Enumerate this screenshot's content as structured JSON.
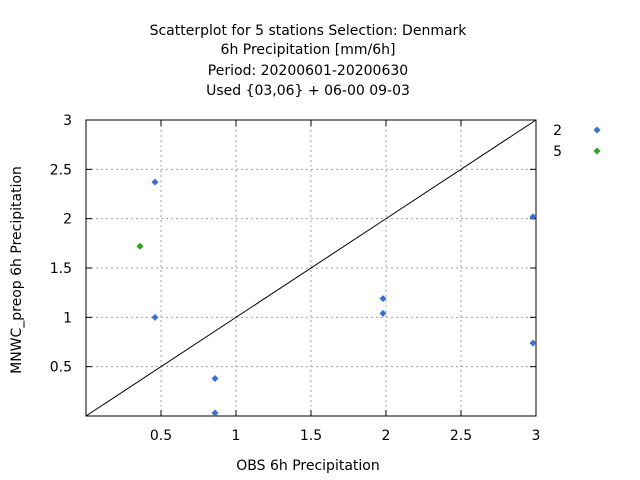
{
  "chart_data": {
    "type": "scatter",
    "title_lines": [
      "Scatterplot for    5 stations Selection: Denmark",
      "6h Precipitation [mm/6h]",
      "Period: 20200601-20200630",
      "Used {03,06} + 06-00 09-03"
    ],
    "xlabel": "OBS 6h Precipitation",
    "ylabel": "MNWC_preop 6h Precipitation",
    "xlim": [
      0.0,
      3.0
    ],
    "ylim": [
      0.0,
      3.0
    ],
    "x_ticks": [
      "0.5",
      "1",
      "1.5",
      "2",
      "2.5",
      "3"
    ],
    "y_ticks": [
      "0.5",
      "1",
      "1.5",
      "2",
      "2.5",
      "3"
    ],
    "grid": true,
    "legend_position": "right",
    "diagonal": true,
    "series": [
      {
        "name": "2",
        "color": "#3b6fd8",
        "points": [
          {
            "x": 0.46,
            "y": 2.37
          },
          {
            "x": 0.46,
            "y": 1.0
          },
          {
            "x": 0.86,
            "y": 0.38
          },
          {
            "x": 0.86,
            "y": 0.03
          },
          {
            "x": 1.98,
            "y": 1.19
          },
          {
            "x": 1.98,
            "y": 1.04
          },
          {
            "x": 2.98,
            "y": 2.02
          },
          {
            "x": 2.98,
            "y": 0.74
          }
        ]
      },
      {
        "name": "5",
        "color": "#22aa11",
        "points": [
          {
            "x": 0.36,
            "y": 1.72
          }
        ]
      }
    ]
  }
}
